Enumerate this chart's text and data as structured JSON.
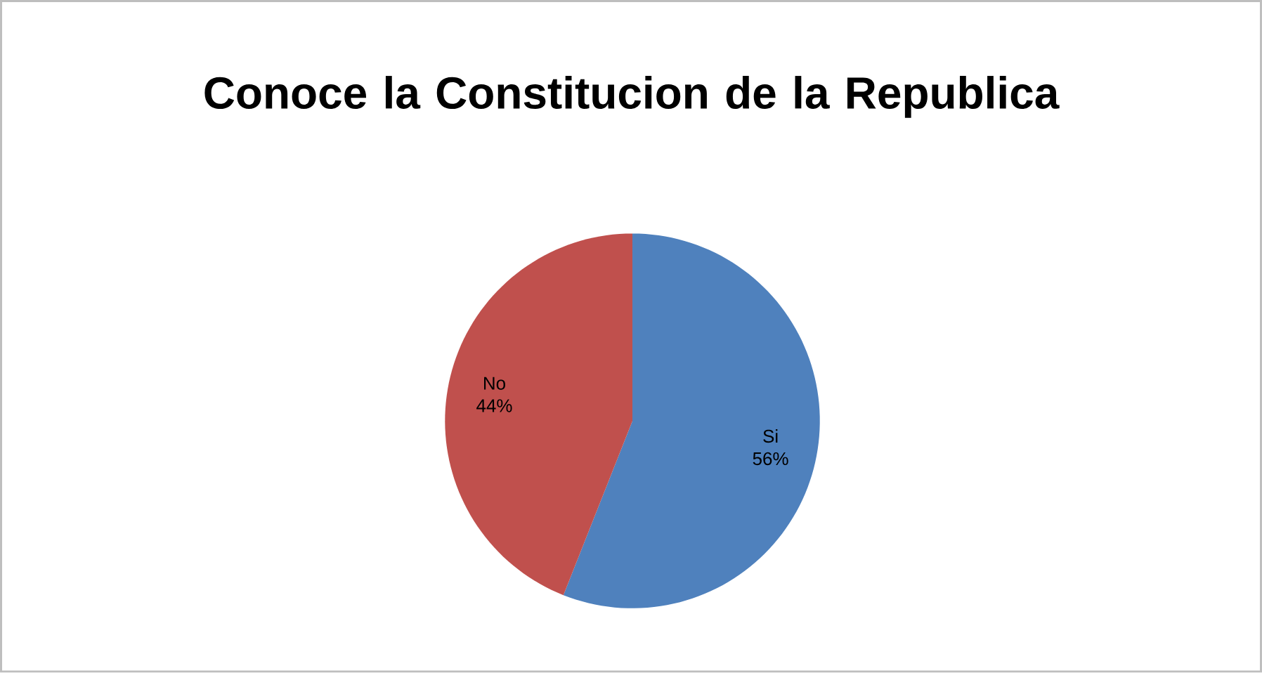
{
  "chart_data": {
    "type": "pie",
    "title": "Conoce la Constitucion de la Republica",
    "categories": [
      "Si",
      "No"
    ],
    "values": [
      56,
      44
    ],
    "colors": [
      "#4f81bd",
      "#c0504d"
    ],
    "value_labels": [
      "56%",
      "44%"
    ]
  }
}
